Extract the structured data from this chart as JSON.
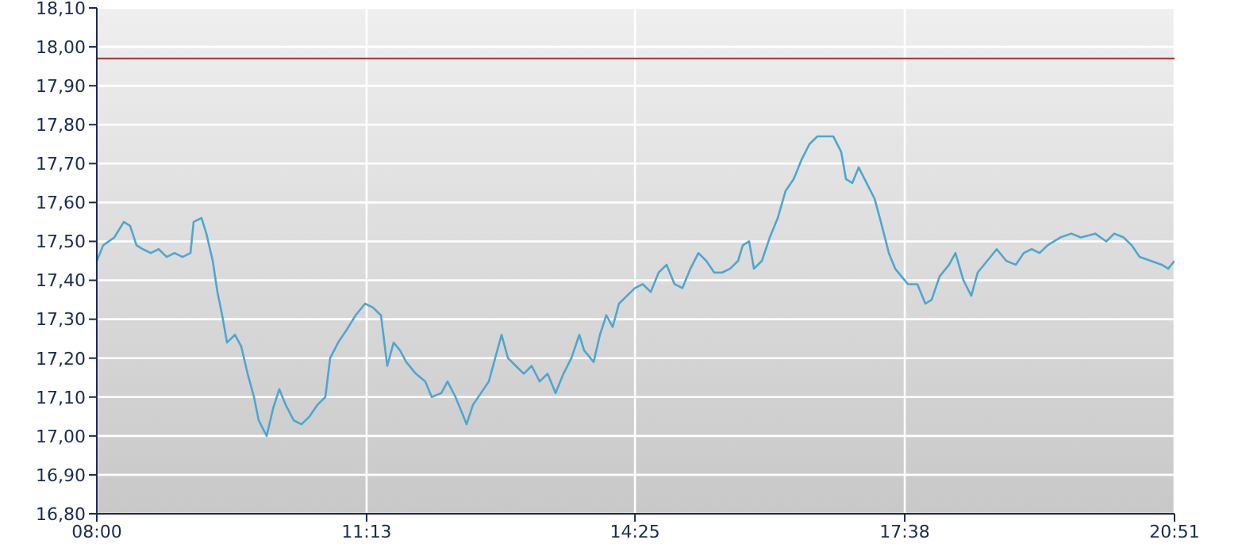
{
  "chart_data": {
    "type": "line",
    "x": [
      8.0,
      8.076,
      8.208,
      8.322,
      8.397,
      8.473,
      8.549,
      8.643,
      8.738,
      8.833,
      8.927,
      9.022,
      9.117,
      9.154,
      9.249,
      9.306,
      9.382,
      9.438,
      9.495,
      9.552,
      9.646,
      9.722,
      9.798,
      9.874,
      9.93,
      10.025,
      10.101,
      10.176,
      10.252,
      10.347,
      10.441,
      10.536,
      10.631,
      10.725,
      10.782,
      10.877,
      10.971,
      11.085,
      11.198,
      11.293,
      11.388,
      11.463,
      11.539,
      11.615,
      11.69,
      11.804,
      11.917,
      11.993,
      12.107,
      12.182,
      12.277,
      12.372,
      12.409,
      12.485,
      12.58,
      12.674,
      12.75,
      12.826,
      12.902,
      12.996,
      13.091,
      13.185,
      13.28,
      13.375,
      13.47,
      13.564,
      13.659,
      13.753,
      13.81,
      13.924,
      13.999,
      14.075,
      14.151,
      14.226,
      14.321,
      14.416,
      14.51,
      14.605,
      14.699,
      14.794,
      14.889,
      14.983,
      15.078,
      15.173,
      15.267,
      15.362,
      15.456,
      15.551,
      15.646,
      15.702,
      15.778,
      15.835,
      15.93,
      16.024,
      16.119,
      16.213,
      16.308,
      16.403,
      16.497,
      16.592,
      16.687,
      16.781,
      16.876,
      16.933,
      17.008,
      17.084,
      17.179,
      17.273,
      17.349,
      17.444,
      17.519,
      17.595,
      17.671,
      17.784,
      17.879,
      17.954,
      18.049,
      18.162,
      18.238,
      18.333,
      18.427,
      18.503,
      18.617,
      18.73,
      18.844,
      18.957,
      19.052,
      19.147,
      19.241,
      19.336,
      19.487,
      19.62,
      19.733,
      19.904,
      20.036,
      20.131,
      20.245,
      20.339,
      20.434,
      20.567,
      20.699,
      20.775,
      20.85
    ],
    "series": [
      {
        "color": "#4fa6d0",
        "values": [
          17.45,
          17.49,
          17.51,
          17.55,
          17.54,
          17.49,
          17.48,
          17.47,
          17.48,
          17.46,
          17.47,
          17.46,
          17.47,
          17.55,
          17.56,
          17.52,
          17.45,
          17.37,
          17.31,
          17.24,
          17.26,
          17.23,
          17.16,
          17.1,
          17.04,
          17.0,
          17.07,
          17.12,
          17.08,
          17.04,
          17.03,
          17.05,
          17.08,
          17.1,
          17.2,
          17.24,
          17.27,
          17.31,
          17.34,
          17.33,
          17.31,
          17.18,
          17.24,
          17.22,
          17.19,
          17.16,
          17.14,
          17.1,
          17.11,
          17.14,
          17.1,
          17.05,
          17.03,
          17.08,
          17.11,
          17.14,
          17.2,
          17.26,
          17.2,
          17.18,
          17.16,
          17.18,
          17.14,
          17.16,
          17.11,
          17.16,
          17.2,
          17.26,
          17.22,
          17.19,
          17.26,
          17.31,
          17.28,
          17.34,
          17.36,
          17.38,
          17.39,
          17.37,
          17.42,
          17.44,
          17.39,
          17.38,
          17.43,
          17.47,
          17.45,
          17.42,
          17.42,
          17.43,
          17.45,
          17.49,
          17.5,
          17.43,
          17.45,
          17.51,
          17.56,
          17.63,
          17.66,
          17.71,
          17.75,
          17.77,
          17.77,
          17.77,
          17.73,
          17.66,
          17.65,
          17.69,
          17.65,
          17.61,
          17.55,
          17.47,
          17.43,
          17.41,
          17.39,
          17.39,
          17.34,
          17.35,
          17.41,
          17.44,
          17.47,
          17.4,
          17.36,
          17.42,
          17.45,
          17.48,
          17.45,
          17.44,
          17.47,
          17.48,
          17.47,
          17.49,
          17.51,
          17.52,
          17.51,
          17.52,
          17.5,
          17.52,
          17.51,
          17.49,
          17.46,
          17.45,
          17.44,
          17.43,
          17.45
        ]
      }
    ],
    "xlim": [
      8.0,
      20.85
    ],
    "xticks": [
      {
        "value": 8.0,
        "label": "08:00"
      },
      {
        "value": 11.2167,
        "label": "11:13"
      },
      {
        "value": 14.4167,
        "label": "14:25"
      },
      {
        "value": 17.6333,
        "label": "17:38"
      },
      {
        "value": 20.85,
        "label": "20:51"
      }
    ],
    "ylim": [
      16.8,
      18.1
    ],
    "yticks": [
      {
        "value": 16.8,
        "label": "16,80"
      },
      {
        "value": 16.9,
        "label": "16,90"
      },
      {
        "value": 17.0,
        "label": "17,00"
      },
      {
        "value": 17.1,
        "label": "17,10"
      },
      {
        "value": 17.2,
        "label": "17,20"
      },
      {
        "value": 17.3,
        "label": "17,30"
      },
      {
        "value": 17.4,
        "label": "17,40"
      },
      {
        "value": 17.5,
        "label": "17,50"
      },
      {
        "value": 17.6,
        "label": "17,60"
      },
      {
        "value": 17.7,
        "label": "17,70"
      },
      {
        "value": 17.8,
        "label": "17,80"
      },
      {
        "value": 17.9,
        "label": "17,90"
      },
      {
        "value": 18.0,
        "label": "18,00"
      },
      {
        "value": 18.1,
        "label": "18,10"
      }
    ],
    "ref_lines": [
      {
        "axis": "y",
        "value": 17.97,
        "color": "#a03030"
      }
    ],
    "grid": true,
    "marker": "none",
    "line_style": "solid",
    "legend": false
  }
}
